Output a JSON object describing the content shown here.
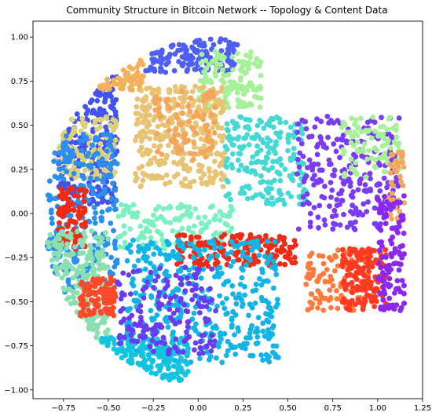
{
  "chart_data": {
    "type": "scatter",
    "title": "Community Structure in Bitcoin Network -- Topology & Content Data",
    "xlabel": "",
    "ylabel": "",
    "xlim": [
      -0.92,
      1.25
    ],
    "ylim": [
      -1.05,
      1.09
    ],
    "xticks": [
      -0.75,
      -0.5,
      -0.25,
      0.0,
      0.25,
      0.5,
      0.75,
      1.0,
      1.25
    ],
    "xtick_labels": [
      "−0.75",
      "−0.50",
      "−0.25",
      "0.00",
      "0.25",
      "0.50",
      "0.75",
      "1.00",
      "1.25"
    ],
    "yticks": [
      1.0,
      0.75,
      0.5,
      0.25,
      0.0,
      -0.25,
      -0.5,
      -0.75,
      -1.0
    ],
    "ytick_labels": [
      "1.00",
      "0.75",
      "0.50",
      "0.25",
      "0.00",
      "−0.25",
      "−0.50",
      "−0.75",
      "−1.00"
    ],
    "grid": false,
    "legend": "none",
    "colormap": "rainbow",
    "communities": [
      {
        "color": "#4353ee",
        "region": [
          -0.78,
          -0.45,
          0.05,
          0.8
        ],
        "count": 260
      },
      {
        "color": "#f2b15a",
        "region": [
          -0.55,
          -0.3,
          0.7,
          0.9
        ],
        "count": 60
      },
      {
        "color": "#4f5ff2",
        "region": [
          -0.3,
          0.22,
          0.8,
          1.0
        ],
        "count": 150
      },
      {
        "color": "#a6f197",
        "region": [
          0.0,
          0.35,
          0.6,
          0.92
        ],
        "count": 140
      },
      {
        "color": "#dcd079",
        "region": [
          -0.8,
          -0.45,
          0.2,
          0.55
        ],
        "count": 120
      },
      {
        "color": "#e7c373",
        "region": [
          -0.35,
          0.15,
          0.15,
          0.72
        ],
        "count": 330
      },
      {
        "color": "#f4a65c",
        "region": [
          -0.25,
          0.1,
          0.3,
          0.7
        ],
        "count": 90
      },
      {
        "color": "#46d8d3",
        "region": [
          0.15,
          0.6,
          0.05,
          0.55
        ],
        "count": 210
      },
      {
        "color": "#2b8ff0",
        "region": [
          -0.85,
          -0.45,
          -0.45,
          0.45
        ],
        "count": 260
      },
      {
        "color": "#ee2b16",
        "region": [
          -0.78,
          -0.62,
          -0.2,
          0.15
        ],
        "count": 90
      },
      {
        "color": "#8be0b0",
        "region": [
          -0.85,
          -0.5,
          -0.8,
          -0.1
        ],
        "count": 200
      },
      {
        "color": "#ff4a2a",
        "region": [
          -0.66,
          -0.46,
          -0.58,
          -0.36
        ],
        "count": 110
      },
      {
        "color": "#7cf0c0",
        "region": [
          -0.45,
          0.2,
          -0.2,
          0.05
        ],
        "count": 140
      },
      {
        "color": "#ee2b16",
        "region": [
          -0.12,
          0.55,
          -0.3,
          -0.12
        ],
        "count": 180
      },
      {
        "color": "#12b4e6",
        "region": [
          -0.4,
          0.45,
          -0.85,
          -0.15
        ],
        "count": 420
      },
      {
        "color": "#13c4df",
        "region": [
          -0.55,
          -0.05,
          -0.95,
          -0.7
        ],
        "count": 160
      },
      {
        "color": "#6a3cf0",
        "region": [
          -0.45,
          0.1,
          -0.8,
          -0.3
        ],
        "count": 170
      },
      {
        "color": "#7a3cf2",
        "region": [
          0.55,
          1.12,
          -0.1,
          0.55
        ],
        "count": 240
      },
      {
        "color": "#a6f197",
        "region": [
          0.8,
          1.12,
          0.2,
          0.55
        ],
        "count": 90
      },
      {
        "color": "#f4a65c",
        "region": [
          1.05,
          1.15,
          -0.05,
          0.35
        ],
        "count": 40
      },
      {
        "color": "#ff7a3c",
        "region": [
          0.6,
          0.95,
          -0.55,
          -0.2
        ],
        "count": 110
      },
      {
        "color": "#ff3a20",
        "region": [
          0.8,
          1.05,
          -0.55,
          -0.2
        ],
        "count": 160
      },
      {
        "color": "#8a28f0",
        "region": [
          1.0,
          1.15,
          -0.55,
          0.1
        ],
        "count": 110
      }
    ]
  }
}
